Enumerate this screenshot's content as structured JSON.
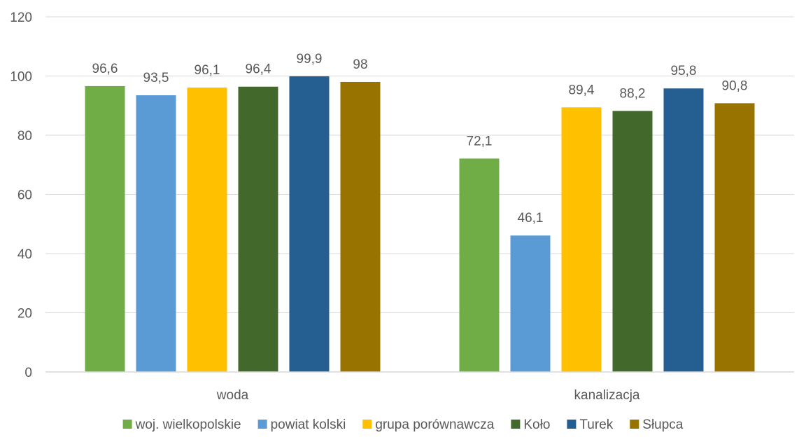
{
  "chart_data": {
    "type": "bar",
    "categories": [
      "woda",
      "kanalizacja"
    ],
    "series": [
      {
        "name": "woj. wielkopolskie",
        "values": [
          96.6,
          72.1
        ],
        "color": "#70AD47"
      },
      {
        "name": "powiat kolski",
        "values": [
          93.5,
          46.1
        ],
        "color": "#5B9BD5"
      },
      {
        "name": "grupa porównawcza",
        "values": [
          96.1,
          89.4
        ],
        "color": "#FFC000"
      },
      {
        "name": "Koło",
        "values": [
          96.4,
          88.2
        ],
        "color": "#43682B"
      },
      {
        "name": "Turek",
        "values": [
          99.9,
          95.8
        ],
        "color": "#255E91"
      },
      {
        "name": "Słupca",
        "values": [
          98,
          90.8
        ],
        "color": "#997300"
      }
    ],
    "data_labels": [
      [
        "96,6",
        "72,1"
      ],
      [
        "93,5",
        "46,1"
      ],
      [
        "96,1",
        "89,4"
      ],
      [
        "96,4",
        "88,2"
      ],
      [
        "99,9",
        "95,8"
      ],
      [
        "98",
        "90,8"
      ]
    ],
    "ylim": [
      0,
      120
    ],
    "yticks": [
      0,
      20,
      40,
      60,
      80,
      100,
      120
    ],
    "grid": true,
    "legend_position": "bottom",
    "title": "",
    "xlabel": "",
    "ylabel": ""
  }
}
